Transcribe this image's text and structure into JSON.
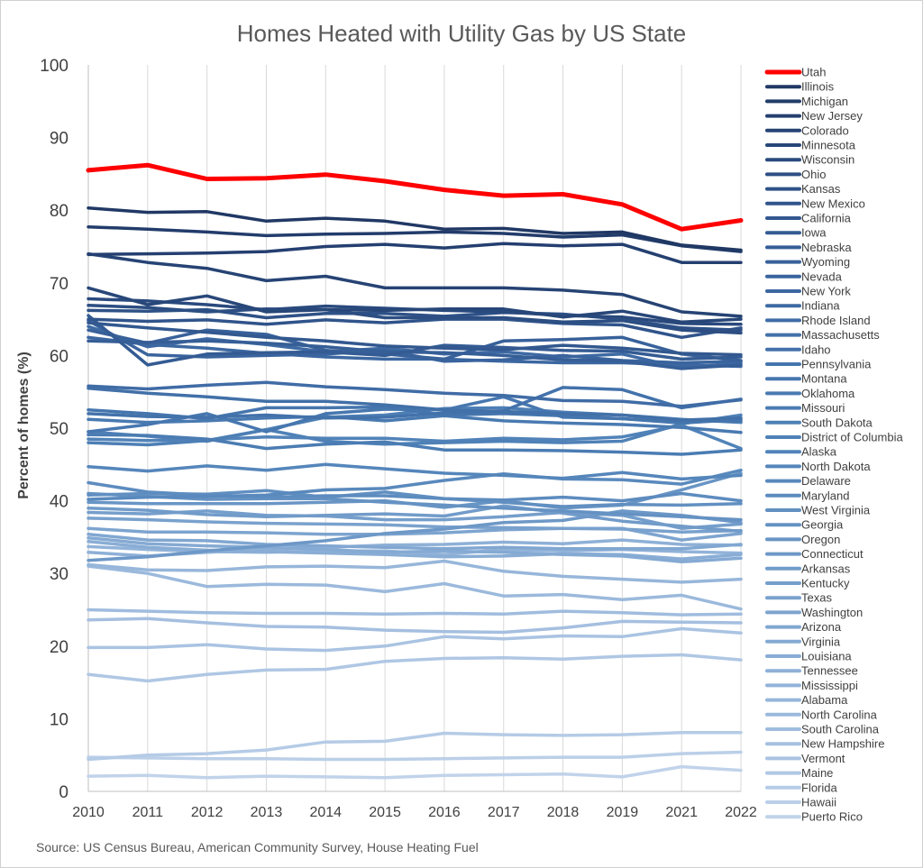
{
  "chart_data": {
    "type": "line",
    "title": "Homes Heated with Utility Gas by US State",
    "ylabel": "Percent of homes (%)",
    "xlabel": "",
    "source": "Source: US Census Bureau, American Community Survey, House Heating Fuel",
    "x": [
      "2010",
      "2011",
      "2012",
      "2013",
      "2014",
      "2015",
      "2016",
      "2017",
      "2018",
      "2019",
      "2021",
      "2022"
    ],
    "ylim": [
      0,
      100
    ],
    "yticks": [
      0,
      10,
      20,
      30,
      40,
      50,
      60,
      70,
      80,
      90,
      100
    ],
    "grid": "vertical",
    "legend_position": "right",
    "highlight_color": "#ff0000",
    "series": [
      {
        "name": "Utah",
        "color": "#ff0000",
        "values": [
          85.5,
          86.2,
          84.3,
          84.4,
          84.9,
          84.0,
          82.8,
          82.0,
          82.2,
          80.8,
          77.4,
          78.6
        ]
      },
      {
        "name": "Illinois",
        "color": "#203864",
        "values": [
          80.3,
          79.7,
          79.8,
          78.5,
          78.9,
          78.5,
          77.4,
          77.5,
          76.8,
          77.0,
          75.2,
          74.5
        ]
      },
      {
        "name": "Michigan",
        "color": "#223c6b",
        "values": [
          77.7,
          77.4,
          77.0,
          76.5,
          76.7,
          76.8,
          77.0,
          76.8,
          76.3,
          76.6,
          75.1,
          74.3
        ]
      },
      {
        "name": "New Jersey",
        "color": "#243f70",
        "values": [
          73.9,
          74.0,
          74.1,
          74.3,
          75.0,
          75.3,
          74.8,
          75.4,
          75.1,
          75.3,
          72.8,
          72.8
        ]
      },
      {
        "name": "Colorado",
        "color": "#264374",
        "values": [
          74.0,
          72.8,
          72.0,
          70.3,
          70.9,
          69.3,
          69.3,
          69.3,
          69.0,
          68.4,
          66.0,
          65.4
        ]
      },
      {
        "name": "Minnesota",
        "color": "#284779",
        "values": [
          69.3,
          67.0,
          68.2,
          66.0,
          66.3,
          66.2,
          66.4,
          66.4,
          65.3,
          66.1,
          64.6,
          65.0
        ]
      },
      {
        "name": "Wisconsin",
        "color": "#2a4a7e",
        "values": [
          67.8,
          67.5,
          67.0,
          66.3,
          66.8,
          66.5,
          66.2,
          66.0,
          65.5,
          65.3,
          64.4,
          64.3
        ]
      },
      {
        "name": "Ohio",
        "color": "#2c4e82",
        "values": [
          66.9,
          66.6,
          66.0,
          66.4,
          66.3,
          65.2,
          65.2,
          65.2,
          64.6,
          64.8,
          63.5,
          63.1
        ]
      },
      {
        "name": "Kansas",
        "color": "#2e5187",
        "values": [
          66.2,
          66.1,
          66.3,
          65.2,
          65.8,
          65.8,
          65.4,
          65.9,
          65.7,
          65.0,
          63.8,
          63.5
        ]
      },
      {
        "name": "New Mexico",
        "color": "#30548b",
        "values": [
          65.0,
          64.7,
          64.9,
          64.3,
          64.9,
          64.5,
          65.0,
          65.0,
          64.4,
          64.2,
          62.5,
          63.8
        ]
      },
      {
        "name": "California",
        "color": "#32588f",
        "values": [
          64.5,
          63.8,
          63.2,
          62.5,
          62.0,
          61.3,
          61.0,
          60.8,
          61.4,
          61.0,
          60.3,
          60.1
        ]
      },
      {
        "name": "Iowa",
        "color": "#345b93",
        "values": [
          65.5,
          58.7,
          60.2,
          60.4,
          60.5,
          60.0,
          61.4,
          61.1,
          60.7,
          60.6,
          59.5,
          59.8
        ]
      },
      {
        "name": "Nebraska",
        "color": "#365e97",
        "values": [
          62.0,
          61.8,
          62.0,
          61.7,
          61.2,
          60.5,
          60.4,
          60.0,
          59.4,
          59.2,
          58.2,
          58.7
        ]
      },
      {
        "name": "Wyoming",
        "color": "#38619a",
        "values": [
          63.5,
          61.7,
          63.5,
          62.9,
          60.7,
          60.2,
          59.5,
          62.0,
          62.2,
          62.5,
          60.2,
          59.3
        ]
      },
      {
        "name": "Nevada",
        "color": "#3a649e",
        "values": [
          64.8,
          60.1,
          59.8,
          60.0,
          60.2,
          60.7,
          59.2,
          59.4,
          60.0,
          59.3,
          59.0,
          59.2
        ]
      },
      {
        "name": "New York",
        "color": "#3c67a1",
        "values": [
          62.5,
          61.5,
          61.0,
          60.3,
          59.8,
          59.5,
          59.5,
          59.2,
          59.0,
          59.0,
          58.7,
          58.5
        ]
      },
      {
        "name": "Indiana",
        "color": "#3e6aa4",
        "values": [
          64.0,
          61.2,
          62.3,
          61.5,
          60.5,
          61.0,
          60.2,
          60.5,
          59.8,
          60.2,
          58.3,
          59.0
        ]
      },
      {
        "name": "Rhode Island",
        "color": "#406ca6",
        "values": [
          55.8,
          55.4,
          55.9,
          56.3,
          55.7,
          55.3,
          54.8,
          54.5,
          53.8,
          53.7,
          53.0,
          53.9
        ]
      },
      {
        "name": "Massachusetts",
        "color": "#4270a8",
        "values": [
          55.5,
          54.8,
          54.3,
          53.7,
          53.7,
          53.2,
          52.5,
          52.3,
          52.0,
          51.8,
          51.1,
          51.4
        ]
      },
      {
        "name": "Idaho",
        "color": "#4372ab",
        "values": [
          52.0,
          51.6,
          51.5,
          51.8,
          51.4,
          51.5,
          52.1,
          52.4,
          55.6,
          55.3,
          52.8,
          54.0
        ]
      },
      {
        "name": "Pennsylvania",
        "color": "#4575ad",
        "values": [
          52.5,
          52.0,
          51.3,
          52.8,
          52.8,
          52.9,
          51.8,
          52.0,
          51.7,
          51.3,
          50.9,
          51.0
        ]
      },
      {
        "name": "Montana",
        "color": "#4777af",
        "values": [
          49.5,
          50.5,
          52.0,
          49.5,
          52.0,
          52.6,
          52.5,
          54.3,
          51.5,
          51.3,
          50.7,
          51.2
        ]
      },
      {
        "name": "Oklahoma",
        "color": "#497ab1",
        "values": [
          51.2,
          50.8,
          51.0,
          51.4,
          51.6,
          51.0,
          51.7,
          51.0,
          50.7,
          50.5,
          50.1,
          49.4
        ]
      },
      {
        "name": "Missouri",
        "color": "#4b7cb3",
        "values": [
          49.1,
          49.0,
          48.5,
          47.2,
          47.8,
          48.1,
          47.0,
          47.0,
          46.9,
          46.7,
          46.4,
          47.0
        ]
      },
      {
        "name": "South Dakota",
        "color": "#4d7fb5",
        "values": [
          48.0,
          47.7,
          48.3,
          49.8,
          51.5,
          51.8,
          52.7,
          52.8,
          52.2,
          51.8,
          51.2,
          50.8
        ]
      },
      {
        "name": "District of Columbia",
        "color": "#4f81b7",
        "values": [
          49.5,
          48.9,
          48.2,
          49.8,
          48.2,
          47.8,
          48.0,
          48.2,
          48.0,
          48.2,
          50.6,
          51.8
        ]
      },
      {
        "name": "Alaska",
        "color": "#5183b9",
        "values": [
          48.5,
          48.3,
          48.4,
          48.8,
          48.6,
          48.6,
          48.2,
          48.6,
          48.4,
          48.8,
          50.4,
          47.2
        ]
      },
      {
        "name": "North Dakota",
        "color": "#5586bb",
        "values": [
          44.7,
          44.1,
          44.8,
          44.2,
          45.0,
          44.4,
          43.8,
          43.5,
          43.1,
          43.9,
          43.0,
          43.5
        ]
      },
      {
        "name": "Delaware",
        "color": "#5989bd",
        "values": [
          40.2,
          40.5,
          40.6,
          40.8,
          41.5,
          41.7,
          42.8,
          43.7,
          43.0,
          42.9,
          42.3,
          44.2
        ]
      },
      {
        "name": "Maryland",
        "color": "#5d8cbf",
        "values": [
          42.5,
          41.2,
          40.8,
          40.5,
          40.7,
          40.7,
          40.3,
          40.1,
          40.5,
          40.0,
          41.0,
          40.0
        ]
      },
      {
        "name": "West Virginia",
        "color": "#618fc1",
        "values": [
          40.8,
          41.0,
          40.9,
          41.4,
          40.5,
          41.2,
          40.3,
          39.8,
          39.2,
          39.5,
          39.4,
          39.6
        ]
      },
      {
        "name": "Georgia",
        "color": "#6592c3",
        "values": [
          41.0,
          40.6,
          40.2,
          40.3,
          40.3,
          39.8,
          39.4,
          39.0,
          38.6,
          38.2,
          37.8,
          37.4
        ]
      },
      {
        "name": "Oregon",
        "color": "#6995c5",
        "values": [
          39.8,
          39.6,
          39.6,
          39.6,
          39.8,
          40.0,
          39.1,
          40.0,
          39.0,
          39.4,
          41.5,
          43.8
        ]
      },
      {
        "name": "Connecticut",
        "color": "#6d98c7",
        "values": [
          31.8,
          32.3,
          33.1,
          33.8,
          34.5,
          35.5,
          36.1,
          37.0,
          37.3,
          38.6,
          38.0,
          37.0
        ]
      },
      {
        "name": "Arkansas",
        "color": "#719bc9",
        "values": [
          39.0,
          38.7,
          38.1,
          37.8,
          38.0,
          38.2,
          37.9,
          39.3,
          38.3,
          37.2,
          36.5,
          35.8
        ]
      },
      {
        "name": "Kentucky",
        "color": "#759ecb",
        "values": [
          38.4,
          38.2,
          38.6,
          38.0,
          37.9,
          37.4,
          37.4,
          37.8,
          38.4,
          38.0,
          36.2,
          36.8
        ]
      },
      {
        "name": "Texas",
        "color": "#79a1cd",
        "values": [
          37.6,
          37.4,
          37.1,
          36.9,
          36.8,
          36.7,
          36.4,
          36.3,
          36.2,
          36.1,
          35.7,
          35.9
        ]
      },
      {
        "name": "Washington",
        "color": "#7da4cf",
        "values": [
          36.2,
          35.7,
          35.7,
          35.6,
          35.4,
          35.4,
          35.6,
          36.0,
          36.2,
          36.2,
          34.6,
          35.5
        ]
      },
      {
        "name": "Arizona",
        "color": "#81a7d1",
        "values": [
          35.4,
          34.6,
          34.5,
          34.0,
          33.8,
          33.6,
          33.4,
          33.6,
          33.4,
          33.4,
          33.4,
          34.0
        ]
      },
      {
        "name": "Virginia",
        "color": "#85aad3",
        "values": [
          34.9,
          34.1,
          33.8,
          33.6,
          33.3,
          32.9,
          33.1,
          32.9,
          32.6,
          32.4,
          31.6,
          32.1
        ]
      },
      {
        "name": "Louisiana",
        "color": "#89add5",
        "values": [
          34.4,
          33.6,
          33.2,
          33.0,
          32.8,
          32.6,
          32.3,
          32.4,
          32.7,
          32.6,
          32.0,
          32.6
        ]
      },
      {
        "name": "Tennessee",
        "color": "#8eb0d7",
        "values": [
          32.9,
          32.4,
          32.9,
          33.3,
          33.6,
          33.9,
          34.0,
          34.3,
          34.1,
          34.6,
          34.0,
          33.9
        ]
      },
      {
        "name": "Mississippi",
        "color": "#92b3d9",
        "values": [
          33.7,
          33.3,
          33.0,
          32.9,
          33.1,
          33.1,
          32.6,
          33.3,
          33.1,
          33.3,
          33.0,
          32.8
        ]
      },
      {
        "name": "Alabama",
        "color": "#97b6da",
        "values": [
          31.2,
          30.5,
          30.4,
          30.9,
          31.0,
          30.8,
          31.7,
          30.3,
          29.6,
          29.2,
          28.8,
          29.2
        ]
      },
      {
        "name": "North Carolina",
        "color": "#9bb9dc",
        "values": [
          31.0,
          30.0,
          28.2,
          28.5,
          28.4,
          27.5,
          28.6,
          26.9,
          27.1,
          26.4,
          27.0,
          25.1
        ]
      },
      {
        "name": "South Carolina",
        "color": "#a0bcde",
        "values": [
          25.0,
          24.8,
          24.6,
          24.5,
          24.5,
          24.4,
          24.5,
          24.4,
          24.8,
          24.6,
          24.3,
          24.4
        ]
      },
      {
        "name": "New Hampshire",
        "color": "#a5bfe0",
        "values": [
          23.6,
          23.8,
          23.2,
          22.7,
          22.6,
          22.2,
          22.0,
          21.9,
          22.5,
          23.4,
          23.3,
          23.2
        ]
      },
      {
        "name": "Vermont",
        "color": "#aac3e2",
        "values": [
          19.8,
          19.8,
          20.2,
          19.6,
          19.4,
          20.0,
          21.3,
          21.0,
          21.4,
          21.3,
          22.4,
          21.8
        ]
      },
      {
        "name": "Maine",
        "color": "#afc7e4",
        "values": [
          16.1,
          15.2,
          16.1,
          16.7,
          16.8,
          17.9,
          18.3,
          18.4,
          18.2,
          18.6,
          18.8,
          18.1
        ]
      },
      {
        "name": "Florida",
        "color": "#b5cbe6",
        "values": [
          4.4,
          5.0,
          5.2,
          5.7,
          6.8,
          6.9,
          8.0,
          7.8,
          7.7,
          7.8,
          8.1,
          8.1
        ]
      },
      {
        "name": "Hawaii",
        "color": "#bbcfe8",
        "values": [
          4.7,
          4.6,
          4.5,
          4.5,
          4.4,
          4.4,
          4.5,
          4.6,
          4.7,
          4.7,
          5.2,
          5.4
        ]
      },
      {
        "name": "Puerto Rico",
        "color": "#c1d3ea",
        "values": [
          2.1,
          2.2,
          1.9,
          2.1,
          2.0,
          1.9,
          2.2,
          2.3,
          2.4,
          2.0,
          3.4,
          2.9
        ]
      }
    ]
  }
}
